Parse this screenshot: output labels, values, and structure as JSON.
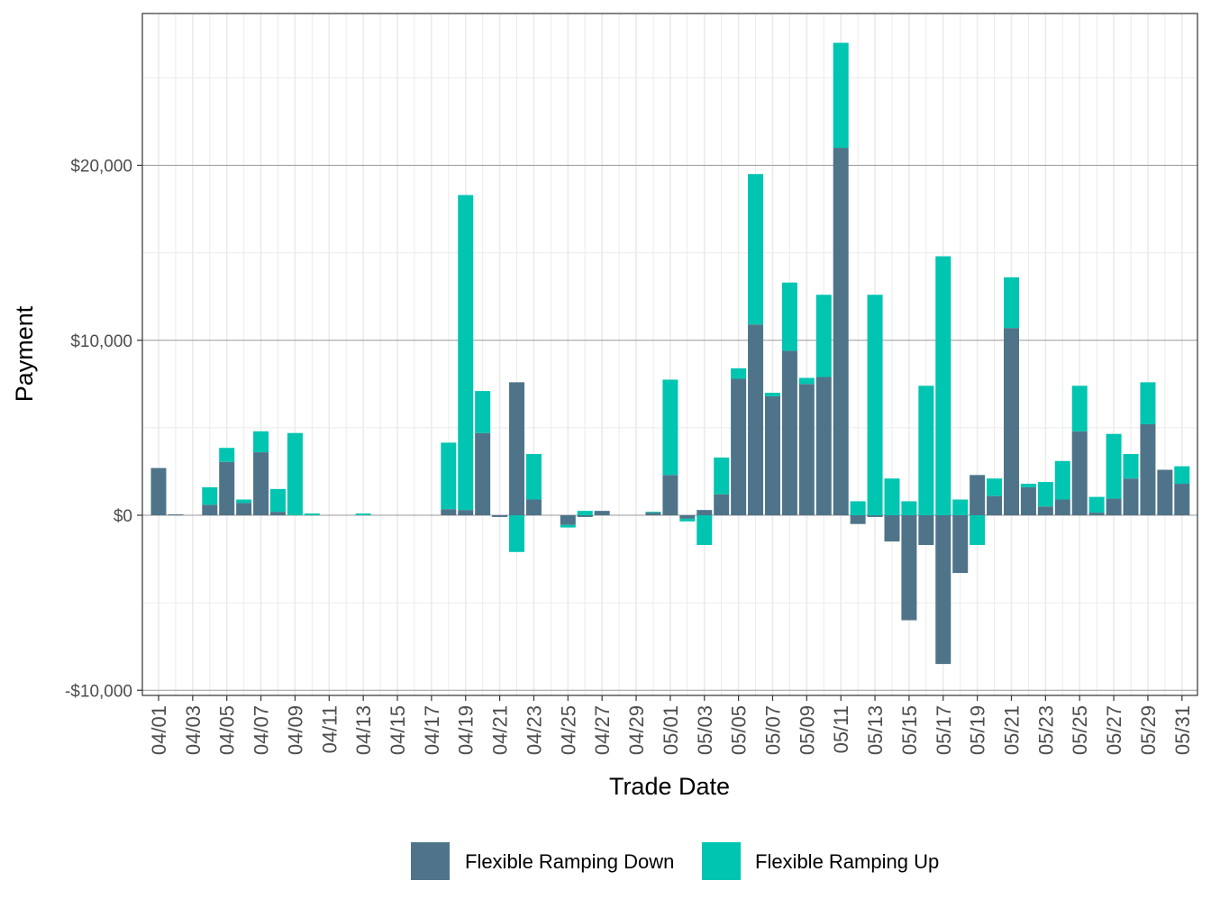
{
  "chart_data": {
    "type": "bar",
    "stacked": true,
    "xlabel": "Trade Date",
    "ylabel": "Payment",
    "ylim": [
      -10000,
      28000
    ],
    "y_ticks": [
      -10000,
      0,
      10000,
      20000
    ],
    "y_tick_labels": [
      "-$10,000",
      "$0",
      "$10,000",
      "$20,000"
    ],
    "grid": true,
    "legend_position": "bottom",
    "colors": {
      "down": "#4f7489",
      "up": "#00c5b0"
    },
    "categories": [
      "04/01",
      "04/02",
      "04/03",
      "04/04",
      "04/05",
      "04/06",
      "04/07",
      "04/08",
      "04/09",
      "04/10",
      "04/11",
      "04/12",
      "04/13",
      "04/14",
      "04/15",
      "04/16",
      "04/17",
      "04/18",
      "04/19",
      "04/20",
      "04/21",
      "04/22",
      "04/23",
      "04/24",
      "04/25",
      "04/26",
      "04/27",
      "04/28",
      "04/29",
      "04/30",
      "05/01",
      "05/02",
      "05/03",
      "05/04",
      "05/05",
      "05/06",
      "05/07",
      "05/08",
      "05/09",
      "05/10",
      "05/11",
      "05/12",
      "05/13",
      "05/14",
      "05/15",
      "05/16",
      "05/17",
      "05/18",
      "05/19",
      "05/20",
      "05/21",
      "05/22",
      "05/23",
      "05/24",
      "05/25",
      "05/26",
      "05/27",
      "05/28",
      "05/29",
      "05/30",
      "05/31"
    ],
    "x_tick_labels": [
      "04/01",
      "04/03",
      "04/05",
      "04/07",
      "04/09",
      "04/11",
      "04/13",
      "04/15",
      "04/17",
      "04/19",
      "04/21",
      "04/23",
      "04/25",
      "04/27",
      "04/29",
      "05/01",
      "05/03",
      "05/05",
      "05/07",
      "05/09",
      "05/11",
      "05/13",
      "05/15",
      "05/17",
      "05/19",
      "05/21",
      "05/23",
      "05/25",
      "05/27",
      "05/29",
      "05/31"
    ],
    "series": [
      {
        "name": "Flexible Ramping Down",
        "color": "#4f7489",
        "values": [
          2700,
          50,
          0,
          600,
          3050,
          700,
          3600,
          200,
          0,
          0,
          0,
          0,
          0,
          0,
          0,
          0,
          0,
          350,
          300,
          4700,
          -100,
          7600,
          900,
          0,
          -550,
          -100,
          250,
          0,
          0,
          150,
          2300,
          -200,
          300,
          1200,
          7800,
          10900,
          6800,
          9400,
          7500,
          7900,
          21000,
          -500,
          -100,
          -1500,
          -6000,
          -1700,
          -8500,
          -3300,
          2300,
          1100,
          10700,
          1600,
          500,
          900,
          4800,
          150,
          950,
          2100,
          5200,
          2600,
          1800
        ]
      },
      {
        "name": "Flexible Ramping Up",
        "color": "#00c5b0",
        "values": [
          0,
          0,
          0,
          1000,
          800,
          200,
          1200,
          1300,
          4700,
          100,
          0,
          0,
          100,
          0,
          0,
          0,
          0,
          3800,
          18000,
          2400,
          0,
          -2100,
          2600,
          0,
          -150,
          250,
          0,
          0,
          0,
          50,
          5450,
          -150,
          -1700,
          2100,
          600,
          8600,
          200,
          3900,
          350,
          4700,
          6000,
          800,
          12600,
          2100,
          800,
          7400,
          14800,
          900,
          -1700,
          1000,
          2900,
          200,
          1400,
          2200,
          2600,
          900,
          3700,
          1400,
          2400,
          0,
          1000
        ]
      }
    ]
  }
}
